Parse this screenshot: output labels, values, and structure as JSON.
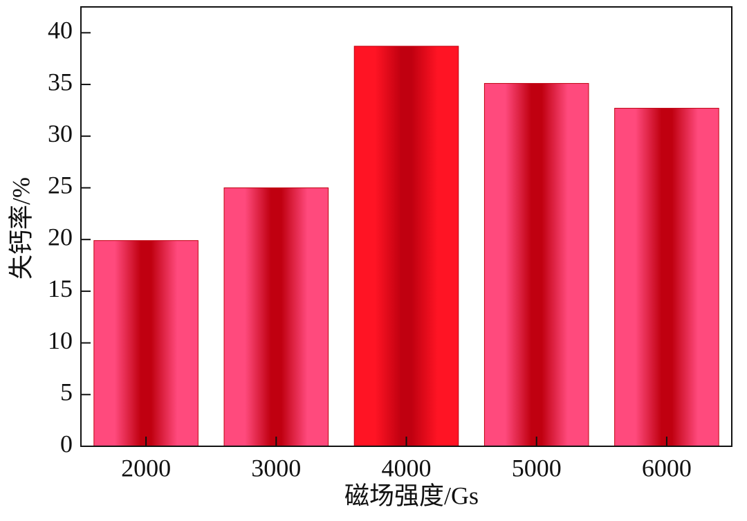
{
  "chart_data": {
    "type": "bar",
    "x_label": "磁场强度/Gs",
    "y_label": "失钙率/%",
    "categories": [
      "2000",
      "3000",
      "4000",
      "5000",
      "6000"
    ],
    "values": [
      19.9,
      25,
      38.7,
      35.1,
      32.7
    ],
    "colors": [
      "#ff4a7d",
      "#ff4a7d",
      "#ff1424",
      "#ff4a7d",
      "#ff4a7d"
    ],
    "shade_color": "#c00010",
    "ylim": [
      0,
      42.5
    ],
    "yticks": [
      0,
      5,
      10,
      15,
      20,
      25,
      30,
      35,
      40
    ]
  }
}
